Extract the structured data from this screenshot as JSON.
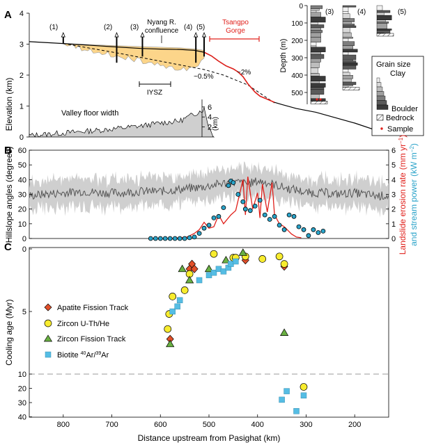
{
  "panels": {
    "a": "A",
    "b": "B",
    "c": "C"
  },
  "colors": {
    "fill_orange": "#fcd58a",
    "red": "#e0201b",
    "teal": "#2aa3c9",
    "dark": "#444444",
    "light": "#cfcfcf",
    "apatite": "#e2502a",
    "zircon_uthhe": "#f8ec2e",
    "zircon_ft": "#69b042",
    "biotite": "#55bde4"
  },
  "chart_data": [
    {
      "type": "line",
      "panel": "A",
      "ylabel": "Elevation (km)",
      "yticks": [
        "0",
        "1",
        "2",
        "3",
        "4"
      ],
      "ylim": [
        0,
        4
      ],
      "xlim": [
        870,
        130
      ],
      "annotations": {
        "site_1": "(1)",
        "site_2": "(2)",
        "site_3": "(3)",
        "site_4": "(4)",
        "site_5": "(5)",
        "confluence_1": "Nyang R.",
        "confluence_2": "confluence",
        "iysz": "IYSZ",
        "gorge_1": "Tsangpo",
        "gorge_2": "Gorge",
        "slope_gentle": "~0.5%",
        "slope_steep": "~2%",
        "valley": "Valley floor width"
      },
      "site_positions_km": [
        800,
        690,
        637,
        527,
        510
      ],
      "river_profile": {
        "x": [
          870,
          800,
          700,
          640,
          600,
          560,
          530,
          510,
          495,
          480,
          465,
          450,
          440,
          430,
          420,
          405,
          395,
          380,
          365,
          350,
          320,
          280,
          200,
          130
        ],
        "y": [
          3.08,
          3.02,
          2.92,
          2.86,
          2.84,
          2.83,
          2.8,
          2.74,
          2.62,
          2.45,
          2.3,
          2.2,
          2.1,
          1.95,
          1.72,
          1.45,
          1.32,
          1.22,
          1.12,
          1.05,
          0.92,
          0.8,
          0.45,
          0.08
        ]
      },
      "valley_fill_top": {
        "x": [
          800,
          690,
          637,
          560,
          527,
          510
        ],
        "y": [
          3.02,
          2.95,
          2.92,
          2.88,
          2.84,
          2.8
        ]
      },
      "bedrock_dashed": {
        "x": [
          800,
          690,
          600,
          510,
          470,
          420,
          365
        ],
        "y": [
          3.02,
          2.72,
          2.45,
          2.18,
          2.0,
          1.68,
          1.1
        ]
      },
      "inset_width": {
        "label": "Valley floor width",
        "unit": "(km)",
        "yticks": [
          "2",
          "4",
          "6"
        ],
        "ylim": [
          0,
          7
        ]
      }
    },
    {
      "type": "table",
      "panel": "A-inset",
      "ylabel": "Depth (m)",
      "yticks": [
        "0",
        "100",
        "200",
        "300",
        "400",
        "500"
      ],
      "columns": [
        "(3)",
        "(4)",
        "(5)"
      ],
      "depths_m": [
        550,
        470,
        160
      ]
    },
    {
      "type": "line",
      "panel": "B",
      "ylabel": "Hillslope angles (degrees)",
      "yticks": [
        "0",
        "10",
        "20",
        "30",
        "40",
        "50",
        "60"
      ],
      "ylim": [
        0,
        60
      ],
      "y2label_a": "Landslide erosion rate",
      "y2label_a_unit": "(mm yr",
      "y2label_a_sup": "−1",
      "y2label_a_end": ")",
      "y2label_b": "and stream power",
      "y2label_b_unit": "(kW m",
      "y2label_b_sup": "−2",
      "y2label_b_end": ")",
      "y2ticks": [
        "0",
        "1",
        "2",
        "3",
        "4",
        "5",
        "6"
      ],
      "y2lim": [
        0,
        6
      ],
      "hillslope_mean": {
        "x": [
          870,
          840,
          800,
          760,
          720,
          680,
          640,
          600,
          570,
          540,
          510,
          480,
          460,
          440,
          420,
          400,
          380,
          360,
          340,
          320,
          300,
          280,
          260,
          240,
          200,
          160,
          130
        ],
        "y": [
          29,
          30,
          31,
          32,
          31,
          31,
          32,
          32,
          33,
          34,
          35,
          37,
          38,
          38,
          37,
          39,
          38,
          36,
          34,
          33,
          31,
          31,
          31,
          30,
          31,
          29,
          29
        ]
      },
      "landslide_erosion": {
        "x": [
          580,
          560,
          545,
          530,
          520,
          510,
          500,
          490,
          480,
          470,
          455,
          445,
          430,
          425,
          420,
          410,
          400,
          395,
          390,
          380,
          370,
          365,
          355,
          345,
          330,
          320,
          310
        ],
        "y": [
          0.0,
          0.05,
          0.1,
          0.35,
          0.6,
          1.1,
          0.7,
          0.8,
          1.6,
          1.0,
          1.6,
          1.9,
          4.0,
          1.6,
          4.2,
          2.0,
          3.1,
          1.4,
          3.7,
          1.8,
          3.8,
          1.6,
          1.0,
          0.8,
          0.3,
          0.1,
          0.05
        ]
      },
      "stream_power": {
        "x": [
          620,
          610,
          600,
          590,
          580,
          570,
          560,
          550,
          540,
          530,
          520,
          510,
          500,
          490,
          480,
          470,
          460,
          455,
          450,
          440,
          430,
          425,
          415,
          405,
          395,
          385,
          375,
          365,
          355,
          345,
          335,
          325,
          315,
          305,
          295,
          285,
          275,
          265
        ],
        "y": [
          0.0,
          0.0,
          0.0,
          0.0,
          0.0,
          0.0,
          0.0,
          0.0,
          0.05,
          0.1,
          0.35,
          0.7,
          0.9,
          1.4,
          1.5,
          2.1,
          3.6,
          3.9,
          3.8,
          3.0,
          2.5,
          2.0,
          1.9,
          2.2,
          2.6,
          1.6,
          1.3,
          1.5,
          0.9,
          0.6,
          1.6,
          1.5,
          0.8,
          0.6,
          0.2,
          0.6,
          0.4,
          0.5
        ]
      }
    },
    {
      "type": "scatter",
      "panel": "C",
      "ylabel": "Cooling age (Myr)",
      "yticks_top": [
        "0",
        "5",
        "10"
      ],
      "yticks_bottom": [
        "20",
        "30",
        "40"
      ],
      "xlabel": "Distance upstream from Pasighat (km)",
      "xticks": [
        "800",
        "700",
        "600",
        "500",
        "400",
        "300",
        "200"
      ],
      "xlim": [
        870,
        130
      ],
      "legend": {
        "afm": "Apatite Fission Track",
        "zhe": "Zircon U-Th/He",
        "zft": "Zircon Fission Track",
        "bio_pre": "Biotite ",
        "bio_sup1": "40",
        "bio_mid": "Ar/",
        "bio_sup2": "39",
        "bio_end": "Ar"
      },
      "series": [
        {
          "name": "Apatite Fission Track",
          "x": [
            580,
            540,
            535,
            530,
            425,
            345
          ],
          "y": [
            7.2,
            1.6,
            1.2,
            1.6,
            0.9,
            1.4
          ]
        },
        {
          "name": "Zircon U-Th/He",
          "x": [
            585,
            582,
            575,
            550,
            540,
            490,
            450,
            445,
            425,
            390,
            355,
            345,
            305
          ],
          "y": [
            6.4,
            5.2,
            3.8,
            3.3,
            2.0,
            0.4,
            0.7,
            0.7,
            0.6,
            0.8,
            0.6,
            1.2,
            19
          ]
        },
        {
          "name": "Zircon Fission Track",
          "x": [
            580,
            555,
            540,
            500,
            465,
            430,
            345
          ],
          "y": [
            7.6,
            1.6,
            2.5,
            1.6,
            0.9,
            0.3,
            6.7
          ]
        },
        {
          "name": "Biotite 40Ar/39Ar",
          "x": [
            575,
            565,
            560,
            520,
            500,
            490,
            480,
            470,
            460,
            455,
            445,
            350,
            340,
            320,
            305
          ],
          "y": [
            5.0,
            4.6,
            4.1,
            2.5,
            2.1,
            1.9,
            1.6,
            1.8,
            1.5,
            1.2,
            1.0,
            28,
            22,
            36,
            25
          ]
        }
      ]
    }
  ]
}
